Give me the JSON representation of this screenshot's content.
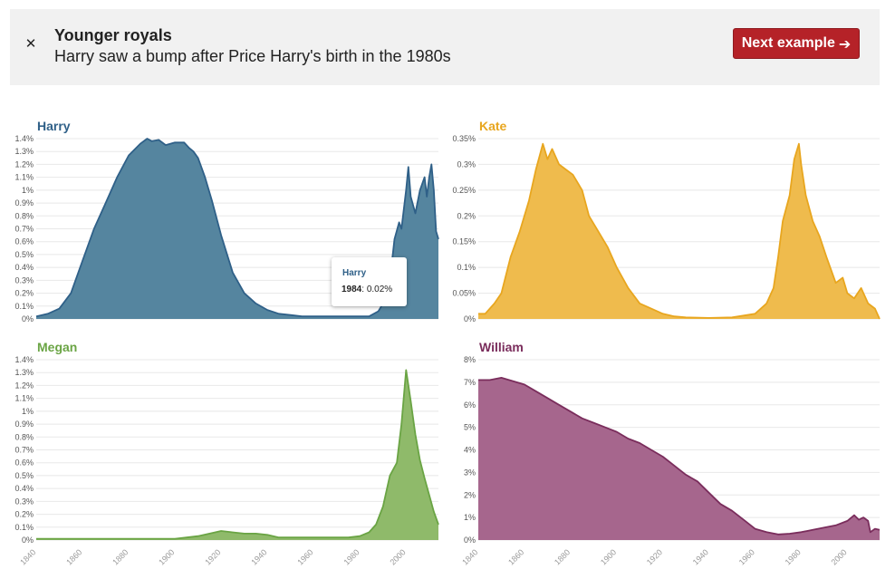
{
  "banner": {
    "title": "Younger royals",
    "subtitle": "Harry saw a bump after Price Harry's birth in the 1980s",
    "close_icon": "close-icon",
    "next_label": "Next example",
    "next_icon": "arrow-right-icon"
  },
  "tooltip": {
    "name": "Harry",
    "year": "1984",
    "value": "0.02%"
  },
  "chart_data": [
    {
      "type": "area",
      "title": "Harry",
      "color": "#2f6088",
      "fill": "#55859f",
      "xlim": [
        1840,
        2014
      ],
      "ylim": [
        0,
        1.4
      ],
      "yticks": [
        0,
        0.1,
        0.2,
        0.3,
        0.4,
        0.5,
        0.6,
        0.7,
        0.8,
        0.9,
        1,
        1.1,
        1.2,
        1.3,
        1.4
      ],
      "ytick_labels": [
        "0%",
        "0.1%",
        "0.2%",
        "0.3%",
        "0.4%",
        "0.5%",
        "0.6%",
        "0.7%",
        "0.8%",
        "0.9%",
        "1%",
        "1.1%",
        "1.2%",
        "1.3%",
        "1.4%"
      ],
      "x": [
        1840,
        1845,
        1850,
        1855,
        1860,
        1865,
        1870,
        1875,
        1880,
        1885,
        1888,
        1890,
        1893,
        1896,
        1900,
        1904,
        1906,
        1908,
        1910,
        1913,
        1916,
        1920,
        1925,
        1930,
        1935,
        1940,
        1945,
        1950,
        1955,
        1960,
        1965,
        1970,
        1975,
        1980,
        1984,
        1988,
        1990,
        1993,
        1995,
        1997,
        1998,
        2000,
        2001,
        2002,
        2004,
        2006,
        2008,
        2009,
        2010,
        2011,
        2012,
        2013,
        2014
      ],
      "y": [
        0.02,
        0.04,
        0.08,
        0.2,
        0.45,
        0.7,
        0.9,
        1.1,
        1.27,
        1.36,
        1.4,
        1.38,
        1.39,
        1.35,
        1.37,
        1.37,
        1.33,
        1.3,
        1.25,
        1.1,
        0.92,
        0.65,
        0.36,
        0.2,
        0.12,
        0.07,
        0.04,
        0.03,
        0.02,
        0.02,
        0.02,
        0.02,
        0.02,
        0.02,
        0.02,
        0.06,
        0.12,
        0.3,
        0.62,
        0.75,
        0.7,
        1.0,
        1.18,
        0.95,
        0.82,
        1.0,
        1.1,
        0.95,
        1.1,
        1.2,
        1.0,
        0.68,
        0.62
      ]
    },
    {
      "type": "area",
      "title": "Kate",
      "color": "#e8a61f",
      "fill": "#efbb4d",
      "xlim": [
        1840,
        2014
      ],
      "ylim": [
        0,
        0.35
      ],
      "yticks": [
        0,
        0.05,
        0.1,
        0.15,
        0.2,
        0.25,
        0.3,
        0.35
      ],
      "ytick_labels": [
        "0%",
        "0.05%",
        "0.1%",
        "0.15%",
        "0.2%",
        "0.25%",
        "0.3%",
        "0.35%"
      ],
      "x": [
        1840,
        1843,
        1847,
        1850,
        1854,
        1858,
        1862,
        1865,
        1868,
        1870,
        1872,
        1875,
        1878,
        1881,
        1885,
        1888,
        1892,
        1896,
        1900,
        1905,
        1910,
        1915,
        1920,
        1925,
        1930,
        1940,
        1950,
        1960,
        1965,
        1968,
        1970,
        1972,
        1975,
        1977,
        1979,
        1980,
        1982,
        1985,
        1988,
        1991,
        1995,
        1998,
        2000,
        2003,
        2006,
        2009,
        2012,
        2014
      ],
      "y": [
        0.01,
        0.01,
        0.03,
        0.05,
        0.12,
        0.17,
        0.23,
        0.29,
        0.34,
        0.31,
        0.33,
        0.3,
        0.29,
        0.28,
        0.25,
        0.2,
        0.17,
        0.14,
        0.1,
        0.06,
        0.03,
        0.02,
        0.01,
        0.005,
        0.003,
        0.002,
        0.003,
        0.01,
        0.03,
        0.06,
        0.12,
        0.19,
        0.24,
        0.31,
        0.34,
        0.3,
        0.24,
        0.19,
        0.16,
        0.12,
        0.07,
        0.08,
        0.05,
        0.04,
        0.06,
        0.03,
        0.02,
        0.0
      ]
    },
    {
      "type": "area",
      "title": "Megan",
      "color": "#6aa444",
      "fill": "#8fba6a",
      "xlim": [
        1840,
        2014
      ],
      "ylim": [
        0,
        1.4
      ],
      "yticks": [
        0,
        0.1,
        0.2,
        0.3,
        0.4,
        0.5,
        0.6,
        0.7,
        0.8,
        0.9,
        1,
        1.1,
        1.2,
        1.3,
        1.4
      ],
      "ytick_labels": [
        "0%",
        "0.1%",
        "0.2%",
        "0.3%",
        "0.4%",
        "0.5%",
        "0.6%",
        "0.7%",
        "0.8%",
        "0.9%",
        "1%",
        "1.1%",
        "1.2%",
        "1.3%",
        "1.4%"
      ],
      "x": [
        1840,
        1860,
        1880,
        1900,
        1905,
        1910,
        1915,
        1920,
        1925,
        1930,
        1935,
        1940,
        1945,
        1950,
        1955,
        1960,
        1965,
        1970,
        1975,
        1980,
        1984,
        1987,
        1990,
        1993,
        1996,
        1998,
        2000,
        2002,
        2004,
        2006,
        2008,
        2010,
        2012,
        2014
      ],
      "y": [
        0.01,
        0.01,
        0.01,
        0.01,
        0.02,
        0.03,
        0.05,
        0.07,
        0.06,
        0.05,
        0.05,
        0.04,
        0.02,
        0.02,
        0.02,
        0.02,
        0.02,
        0.02,
        0.02,
        0.03,
        0.06,
        0.12,
        0.26,
        0.5,
        0.6,
        0.9,
        1.32,
        1.08,
        0.82,
        0.62,
        0.48,
        0.35,
        0.22,
        0.12
      ]
    },
    {
      "type": "area",
      "title": "William",
      "color": "#7a2d5c",
      "fill": "#a6668d",
      "xlim": [
        1840,
        2014
      ],
      "ylim": [
        0,
        8
      ],
      "yticks": [
        0,
        1,
        2,
        3,
        4,
        5,
        6,
        7,
        8
      ],
      "ytick_labels": [
        "0%",
        "1%",
        "2%",
        "3%",
        "4%",
        "5%",
        "6%",
        "7%",
        "8%"
      ],
      "x": [
        1840,
        1845,
        1850,
        1855,
        1860,
        1865,
        1870,
        1875,
        1880,
        1885,
        1890,
        1895,
        1900,
        1905,
        1910,
        1915,
        1920,
        1925,
        1930,
        1935,
        1940,
        1945,
        1950,
        1955,
        1960,
        1965,
        1970,
        1975,
        1980,
        1985,
        1990,
        1995,
        2000,
        2003,
        2005,
        2007,
        2009,
        2010,
        2012,
        2014
      ],
      "y": [
        7.1,
        7.1,
        7.2,
        7.05,
        6.9,
        6.6,
        6.3,
        6.0,
        5.7,
        5.4,
        5.2,
        5.0,
        4.8,
        4.5,
        4.3,
        4.0,
        3.7,
        3.3,
        2.9,
        2.6,
        2.1,
        1.6,
        1.3,
        0.9,
        0.5,
        0.35,
        0.25,
        0.28,
        0.35,
        0.45,
        0.55,
        0.65,
        0.85,
        1.1,
        0.9,
        1.0,
        0.85,
        0.35,
        0.5,
        0.45
      ]
    }
  ],
  "x_tick_labels": [
    "1840",
    "1860",
    "1880",
    "1900",
    "1920",
    "1940",
    "1960",
    "1980",
    "2000"
  ]
}
